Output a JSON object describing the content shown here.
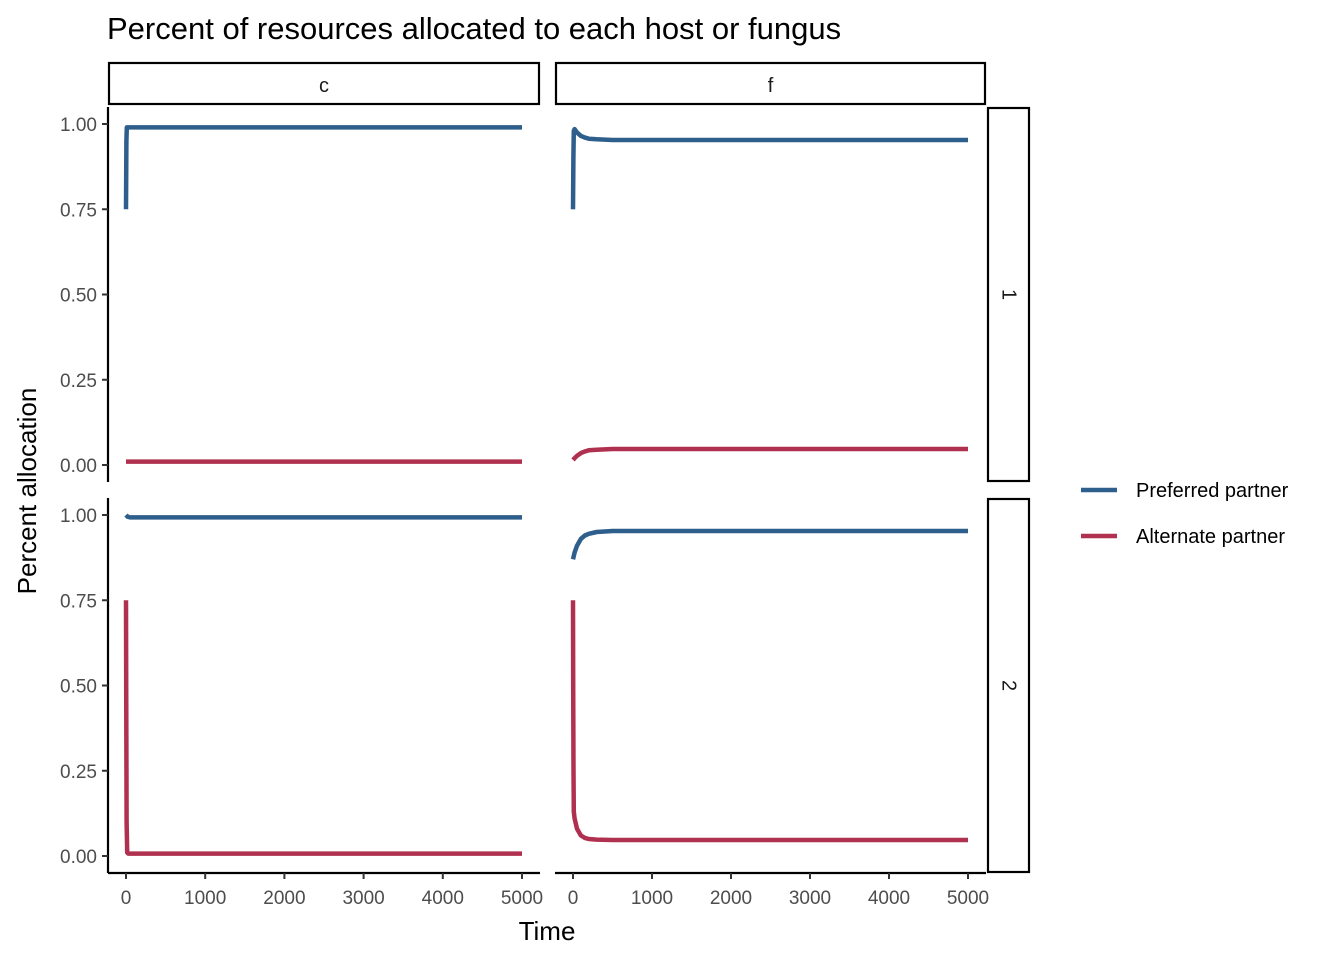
{
  "chart_data": {
    "type": "line",
    "title": "Percent of resources allocated to each host or fungus",
    "xlabel": "Time",
    "ylabel": "Percent allocation",
    "xlim": [
      0,
      5000
    ],
    "ylim": [
      0,
      1
    ],
    "x_ticks": [
      0,
      1000,
      2000,
      3000,
      4000,
      5000
    ],
    "x_tick_labels": [
      "0",
      "1000",
      "2000",
      "3000",
      "4000",
      "5000"
    ],
    "y_ticks": [
      0,
      0.25,
      0.5,
      0.75,
      1
    ],
    "y_tick_labels": [
      "0.00",
      "0.25",
      "0.50",
      "0.75",
      "1.00"
    ],
    "grid": false,
    "legend_position": "right",
    "col_facets": [
      "c",
      "f"
    ],
    "row_facets": [
      "1",
      "2"
    ],
    "series_styles": [
      {
        "name": "Preferred partner",
        "color": "#2e5f8c"
      },
      {
        "name": "Alternate partner",
        "color": "#b0304f"
      }
    ],
    "panels": [
      {
        "col": "c",
        "row": "1",
        "series": [
          {
            "name": "Preferred partner",
            "x": [
              0,
              5,
              10,
              20,
              50,
              5000
            ],
            "y": [
              0.75,
              0.95,
              0.99,
              0.99,
              0.99,
              0.99
            ]
          },
          {
            "name": "Alternate partner",
            "x": [
              0,
              5,
              10,
              20,
              50,
              5000
            ],
            "y": [
              0.01,
              0.01,
              0.01,
              0.01,
              0.01,
              0.01
            ]
          }
        ]
      },
      {
        "col": "f",
        "row": "1",
        "series": [
          {
            "name": "Preferred partner",
            "x": [
              0,
              5,
              10,
              20,
              50,
              100,
              150,
              200,
              300,
              500,
              800,
              1000,
              2000,
              5000
            ],
            "y": [
              0.75,
              0.9,
              0.98,
              0.985,
              0.975,
              0.965,
              0.96,
              0.957,
              0.955,
              0.953,
              0.953,
              0.953,
              0.953,
              0.953
            ]
          },
          {
            "name": "Alternate partner",
            "x": [
              0,
              20,
              50,
              100,
              150,
              200,
              300,
              500,
              800,
              1000,
              2000,
              5000
            ],
            "y": [
              0.015,
              0.02,
              0.027,
              0.035,
              0.04,
              0.043,
              0.045,
              0.047,
              0.047,
              0.047,
              0.047,
              0.047
            ]
          }
        ]
      },
      {
        "col": "c",
        "row": "2",
        "series": [
          {
            "name": "Preferred partner",
            "x": [
              0,
              20,
              50,
              100,
              5000
            ],
            "y": [
              1.0,
              0.995,
              0.993,
              0.993,
              0.993
            ]
          },
          {
            "name": "Alternate partner",
            "x": [
              0,
              3,
              8,
              15,
              30,
              5000
            ],
            "y": [
              0.75,
              0.5,
              0.1,
              0.01,
              0.007,
              0.007
            ]
          }
        ]
      },
      {
        "col": "f",
        "row": "2",
        "series": [
          {
            "name": "Preferred partner",
            "x": [
              0,
              20,
              50,
              100,
              150,
              200,
              300,
              500,
              800,
              1000,
              2000,
              5000
            ],
            "y": [
              0.87,
              0.89,
              0.91,
              0.93,
              0.94,
              0.945,
              0.95,
              0.953,
              0.953,
              0.953,
              0.953,
              0.953
            ]
          },
          {
            "name": "Alternate partner",
            "x": [
              0,
              3,
              6,
              10,
              20,
              50,
              100,
              150,
              200,
              300,
              500,
              800,
              1000,
              2000,
              5000
            ],
            "y": [
              0.75,
              0.5,
              0.25,
              0.13,
              0.11,
              0.08,
              0.06,
              0.053,
              0.05,
              0.048,
              0.047,
              0.047,
              0.047,
              0.047,
              0.047
            ]
          }
        ]
      }
    ]
  }
}
